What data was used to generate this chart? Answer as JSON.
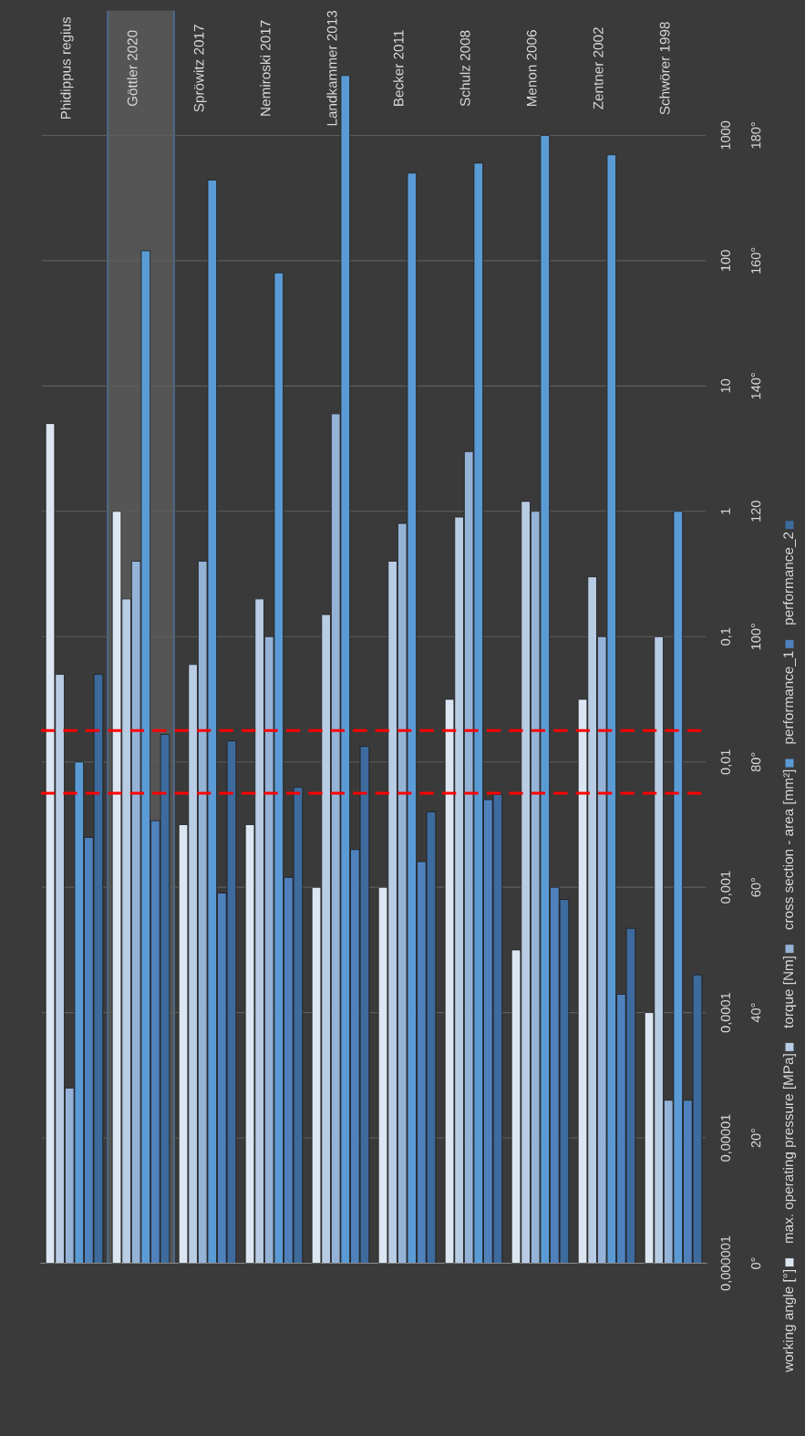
{
  "chart_data": {
    "type": "bar",
    "categories": [
      "Phidippus regius",
      "Göttler 2020",
      "Spröwitz 2017",
      "Nemiroski 2017",
      "Landkammer 2013",
      "Becker 2011",
      "Schulz 2008",
      "Menon 2006",
      "Zentner 2002",
      "Schwörer 1998"
    ],
    "series": [
      {
        "name": "working angle [°]",
        "color": "#dce6f2",
        "axis": "y2",
        "values": [
          134,
          120,
          70,
          70,
          60,
          60,
          90,
          50,
          90,
          40
        ]
      },
      {
        "name": "max. operating pressure [MPa]",
        "color": "#b8cce4",
        "values": [
          0.05,
          0.2,
          0.06,
          0.2,
          0.15,
          0.4,
          0.9,
          1.2,
          0.3,
          0.1
        ]
      },
      {
        "name": "torque [Nm]",
        "color": "#95b3d7",
        "values": [
          2.5e-05,
          0.4,
          0.4,
          0.1,
          6,
          0.8,
          3,
          1,
          0.1,
          2e-05
        ]
      },
      {
        "name": "cross section - area [mm²]",
        "color": "#5b9bd5",
        "values": [
          0.01,
          120,
          440,
          80,
          3000,
          500,
          600,
          1000,
          700,
          1
        ]
      },
      {
        "name": "performance_1",
        "color": "#4f81bd",
        "values": [
          0.0025,
          0.0034,
          0.0009,
          0.0012,
          0.002,
          0.0016,
          0.005,
          0.001,
          0.00014,
          2e-05
        ]
      },
      {
        "name": "performance_2",
        "color": "#3d6b9e",
        "values": [
          0.05,
          0.0166,
          0.0147,
          0.0063,
          0.0133,
          0.004,
          0.0055,
          0.0008,
          0.00047,
          0.0002
        ]
      }
    ],
    "log": "y",
    "ylim": [
      1e-06,
      10000
    ],
    "yticks": [
      {
        "value": 1e-06,
        "label": "0,000001"
      },
      {
        "value": 1e-05,
        "label": "0,00001"
      },
      {
        "value": 0.0001,
        "label": "0,0001"
      },
      {
        "value": 0.001,
        "label": "0,001"
      },
      {
        "value": 0.01,
        "label": "0,01"
      },
      {
        "value": 0.1,
        "label": "0,1"
      },
      {
        "value": 1,
        "label": "1"
      },
      {
        "value": 10,
        "label": "10"
      },
      {
        "value": 100,
        "label": "100"
      },
      {
        "value": 1000,
        "label": "1000"
      }
    ],
    "y2lim": [
      0,
      200
    ],
    "y2ticks": [
      {
        "value": 0,
        "label": "0°"
      },
      {
        "value": 20,
        "label": "20°"
      },
      {
        "value": 40,
        "label": "40°"
      },
      {
        "value": 60,
        "label": "60°"
      },
      {
        "value": 80,
        "label": "80°"
      },
      {
        "value": 100,
        "label": "100°"
      },
      {
        "value": 120,
        "label": "120"
      },
      {
        "value": 140,
        "label": "140°"
      },
      {
        "value": 160,
        "label": "160°"
      },
      {
        "value": 180,
        "label": "180°"
      }
    ],
    "ref_lines": [
      {
        "axis": "y2",
        "value": 75,
        "color": "#ff0000",
        "line_style": "dashed"
      },
      {
        "axis": "y2",
        "value": 85,
        "color": "#ff0000",
        "line_style": "dashed"
      }
    ],
    "bands": [
      {
        "axis": "x",
        "from": "Göttler 2020",
        "to": "Göttler 2020",
        "color": "#555555"
      }
    ],
    "grid": "y",
    "legend": "right"
  }
}
